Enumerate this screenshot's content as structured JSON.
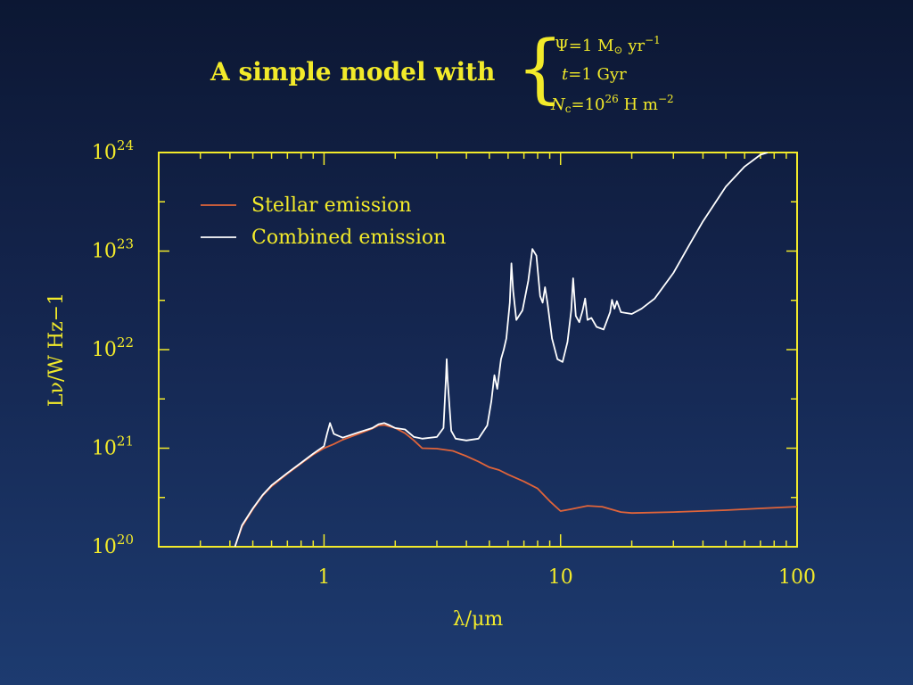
{
  "slide": {
    "title": "A simple model with",
    "parameters": [
      {
        "lhs": "Ψ",
        "eq": "=1",
        "unit": "M",
        "unit_sub": "⊙",
        "unit2": "yr",
        "sup": "−1"
      },
      {
        "lhs": "t",
        "eq": "=1",
        "unit": "Gyr"
      },
      {
        "lhs": "N",
        "lhs_sub": "c",
        "eq": "=10",
        "eq_sup": "26",
        "unit": "H m",
        "sup": "−2"
      }
    ],
    "colors": {
      "text": "#f2ea2a",
      "stellar": "#e0643a",
      "combined": "#ffffff",
      "bg_top": "#0c1733",
      "bg_bottom": "#1d3b70"
    }
  },
  "chart_data": {
    "type": "line",
    "xlabel": "λ/μm",
    "ylabel": "Lν/W Hz−1",
    "x_scale": "log",
    "y_scale": "log",
    "xlim": [
      0.2,
      100
    ],
    "ylim": [
      1e+20,
      1e+24
    ],
    "x_tick_labels": [
      {
        "value": 1,
        "label": "1"
      },
      {
        "value": 10,
        "label": "10"
      },
      {
        "value": 100,
        "label": "100"
      }
    ],
    "y_tick_labels": [
      {
        "value": 1e+20,
        "base": "10",
        "exp": "20"
      },
      {
        "value": 1e+21,
        "base": "10",
        "exp": "21"
      },
      {
        "value": 1e+22,
        "base": "10",
        "exp": "22"
      },
      {
        "value": 1e+23,
        "base": "10",
        "exp": "23"
      },
      {
        "value": 1e+24,
        "base": "10",
        "exp": "24"
      }
    ],
    "legend": {
      "position": "top-left"
    },
    "series": [
      {
        "name": "Stellar emission",
        "color": "#e0643a",
        "points": [
          [
            0.42,
            1e+20
          ],
          [
            0.45,
            1.6e+20
          ],
          [
            0.5,
            2.4e+20
          ],
          [
            0.55,
            3.3e+20
          ],
          [
            0.6,
            4.1e+20
          ],
          [
            0.7,
            5.5e+20
          ],
          [
            0.8,
            7e+20
          ],
          [
            0.9,
            8.6e+20
          ],
          [
            1.0,
            1e+21
          ],
          [
            1.1,
            1.1e+21
          ],
          [
            1.2,
            1.22e+21
          ],
          [
            1.4,
            1.4e+21
          ],
          [
            1.6,
            1.58e+21
          ],
          [
            1.7,
            1.7e+21
          ],
          [
            1.8,
            1.72e+21
          ],
          [
            2.0,
            1.6e+21
          ],
          [
            2.2,
            1.42e+21
          ],
          [
            2.4,
            1.2e+21
          ],
          [
            2.6,
            1e+21
          ],
          [
            3.0,
            9.9e+20
          ],
          [
            3.5,
            9.4e+20
          ],
          [
            4.0,
            8.3e+20
          ],
          [
            4.5,
            7.3e+20
          ],
          [
            5.0,
            6.4e+20
          ],
          [
            5.5,
            6e+20
          ],
          [
            6.0,
            5.4e+20
          ],
          [
            7.0,
            4.6e+20
          ],
          [
            8.0,
            3.9e+20
          ],
          [
            9.0,
            2.9e+20
          ],
          [
            10.0,
            2.3e+20
          ],
          [
            11.0,
            2.4e+20
          ],
          [
            13.0,
            2.6e+20
          ],
          [
            15.0,
            2.55e+20
          ],
          [
            18.0,
            2.25e+20
          ],
          [
            20.0,
            2.2e+20
          ],
          [
            30.0,
            2.25e+20
          ],
          [
            50.0,
            2.35e+20
          ],
          [
            70.0,
            2.45e+20
          ],
          [
            100.0,
            2.55e+20
          ]
        ]
      },
      {
        "name": "Combined emission",
        "color": "#ffffff",
        "points": [
          [
            0.42,
            1e+20
          ],
          [
            0.45,
            1.65e+20
          ],
          [
            0.5,
            2.45e+20
          ],
          [
            0.55,
            3.35e+20
          ],
          [
            0.6,
            4.2e+20
          ],
          [
            0.7,
            5.6e+20
          ],
          [
            0.8,
            7.1e+20
          ],
          [
            0.9,
            8.8e+20
          ],
          [
            1.0,
            1.05e+21
          ],
          [
            1.03,
            1.4e+21
          ],
          [
            1.06,
            1.8e+21
          ],
          [
            1.1,
            1.4e+21
          ],
          [
            1.2,
            1.28e+21
          ],
          [
            1.4,
            1.45e+21
          ],
          [
            1.6,
            1.6e+21
          ],
          [
            1.7,
            1.75e+21
          ],
          [
            1.8,
            1.8e+21
          ],
          [
            1.9,
            1.7e+21
          ],
          [
            2.0,
            1.6e+21
          ],
          [
            2.2,
            1.55e+21
          ],
          [
            2.4,
            1.3e+21
          ],
          [
            2.6,
            1.25e+21
          ],
          [
            3.0,
            1.3e+21
          ],
          [
            3.2,
            1.6e+21
          ],
          [
            3.28,
            5.5e+21
          ],
          [
            3.3,
            8e+21
          ],
          [
            3.33,
            5e+21
          ],
          [
            3.45,
            1.5e+21
          ],
          [
            3.6,
            1.25e+21
          ],
          [
            4.0,
            1.2e+21
          ],
          [
            4.5,
            1.25e+21
          ],
          [
            4.9,
            1.7e+21
          ],
          [
            5.1,
            3e+21
          ],
          [
            5.25,
            5.5e+21
          ],
          [
            5.4,
            4e+21
          ],
          [
            5.6,
            8e+21
          ],
          [
            5.75,
            1e+22
          ],
          [
            5.9,
            1.3e+22
          ],
          [
            6.1,
            3e+22
          ],
          [
            6.2,
            7.5e+22
          ],
          [
            6.3,
            4e+22
          ],
          [
            6.5,
            2e+22
          ],
          [
            6.9,
            2.5e+22
          ],
          [
            7.3,
            5e+22
          ],
          [
            7.6,
            1.05e+23
          ],
          [
            7.9,
            9e+22
          ],
          [
            8.2,
            3.5e+22
          ],
          [
            8.4,
            3e+22
          ],
          [
            8.6,
            4.3e+22
          ],
          [
            8.8,
            3e+22
          ],
          [
            9.2,
            1.3e+22
          ],
          [
            9.7,
            8e+21
          ],
          [
            10.2,
            7.5e+21
          ],
          [
            10.7,
            1.2e+22
          ],
          [
            11.1,
            2.5e+22
          ],
          [
            11.3,
            5.3e+22
          ],
          [
            11.6,
            2.2e+22
          ],
          [
            12.0,
            1.9e+22
          ],
          [
            12.4,
            2.5e+22
          ],
          [
            12.7,
            3.3e+22
          ],
          [
            13.0,
            2e+22
          ],
          [
            13.5,
            2.1e+22
          ],
          [
            14.2,
            1.7e+22
          ],
          [
            15.2,
            1.6e+22
          ],
          [
            16.2,
            2.4e+22
          ],
          [
            16.5,
            3.2e+22
          ],
          [
            16.9,
            2.6e+22
          ],
          [
            17.3,
            3.1e+22
          ],
          [
            18.0,
            2.4e+22
          ],
          [
            20.0,
            2.3e+22
          ],
          [
            22.0,
            2.6e+22
          ],
          [
            25.0,
            3.3e+22
          ],
          [
            30.0,
            6e+22
          ],
          [
            35.0,
            1.15e+23
          ],
          [
            40.0,
            2e+23
          ],
          [
            50.0,
            4.5e+23
          ],
          [
            60.0,
            7.2e+23
          ],
          [
            70.0,
            9.5e+23
          ],
          [
            75.0,
            1e+24
          ]
        ]
      }
    ]
  }
}
